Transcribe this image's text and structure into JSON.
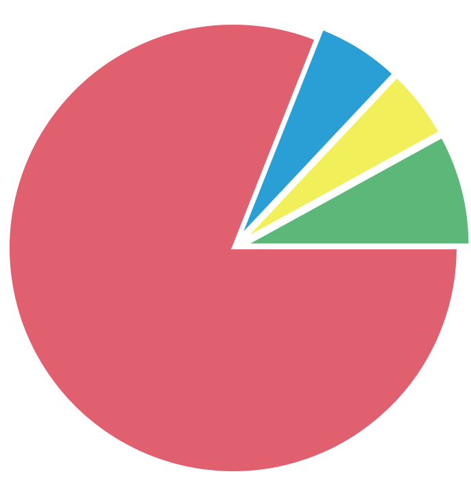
{
  "chart_data": {
    "type": "pie",
    "title": "",
    "categories": [
      "",
      "",
      "",
      ""
    ],
    "values": [
      81,
      6,
      5,
      8
    ],
    "colors": [
      "#e06070",
      "#2a9fd6",
      "#f2f05a",
      "#5cb878"
    ],
    "exploded": [
      false,
      true,
      true,
      true
    ],
    "start_angle_deg": 0,
    "direction": "counterclockwise",
    "legend": "none"
  }
}
